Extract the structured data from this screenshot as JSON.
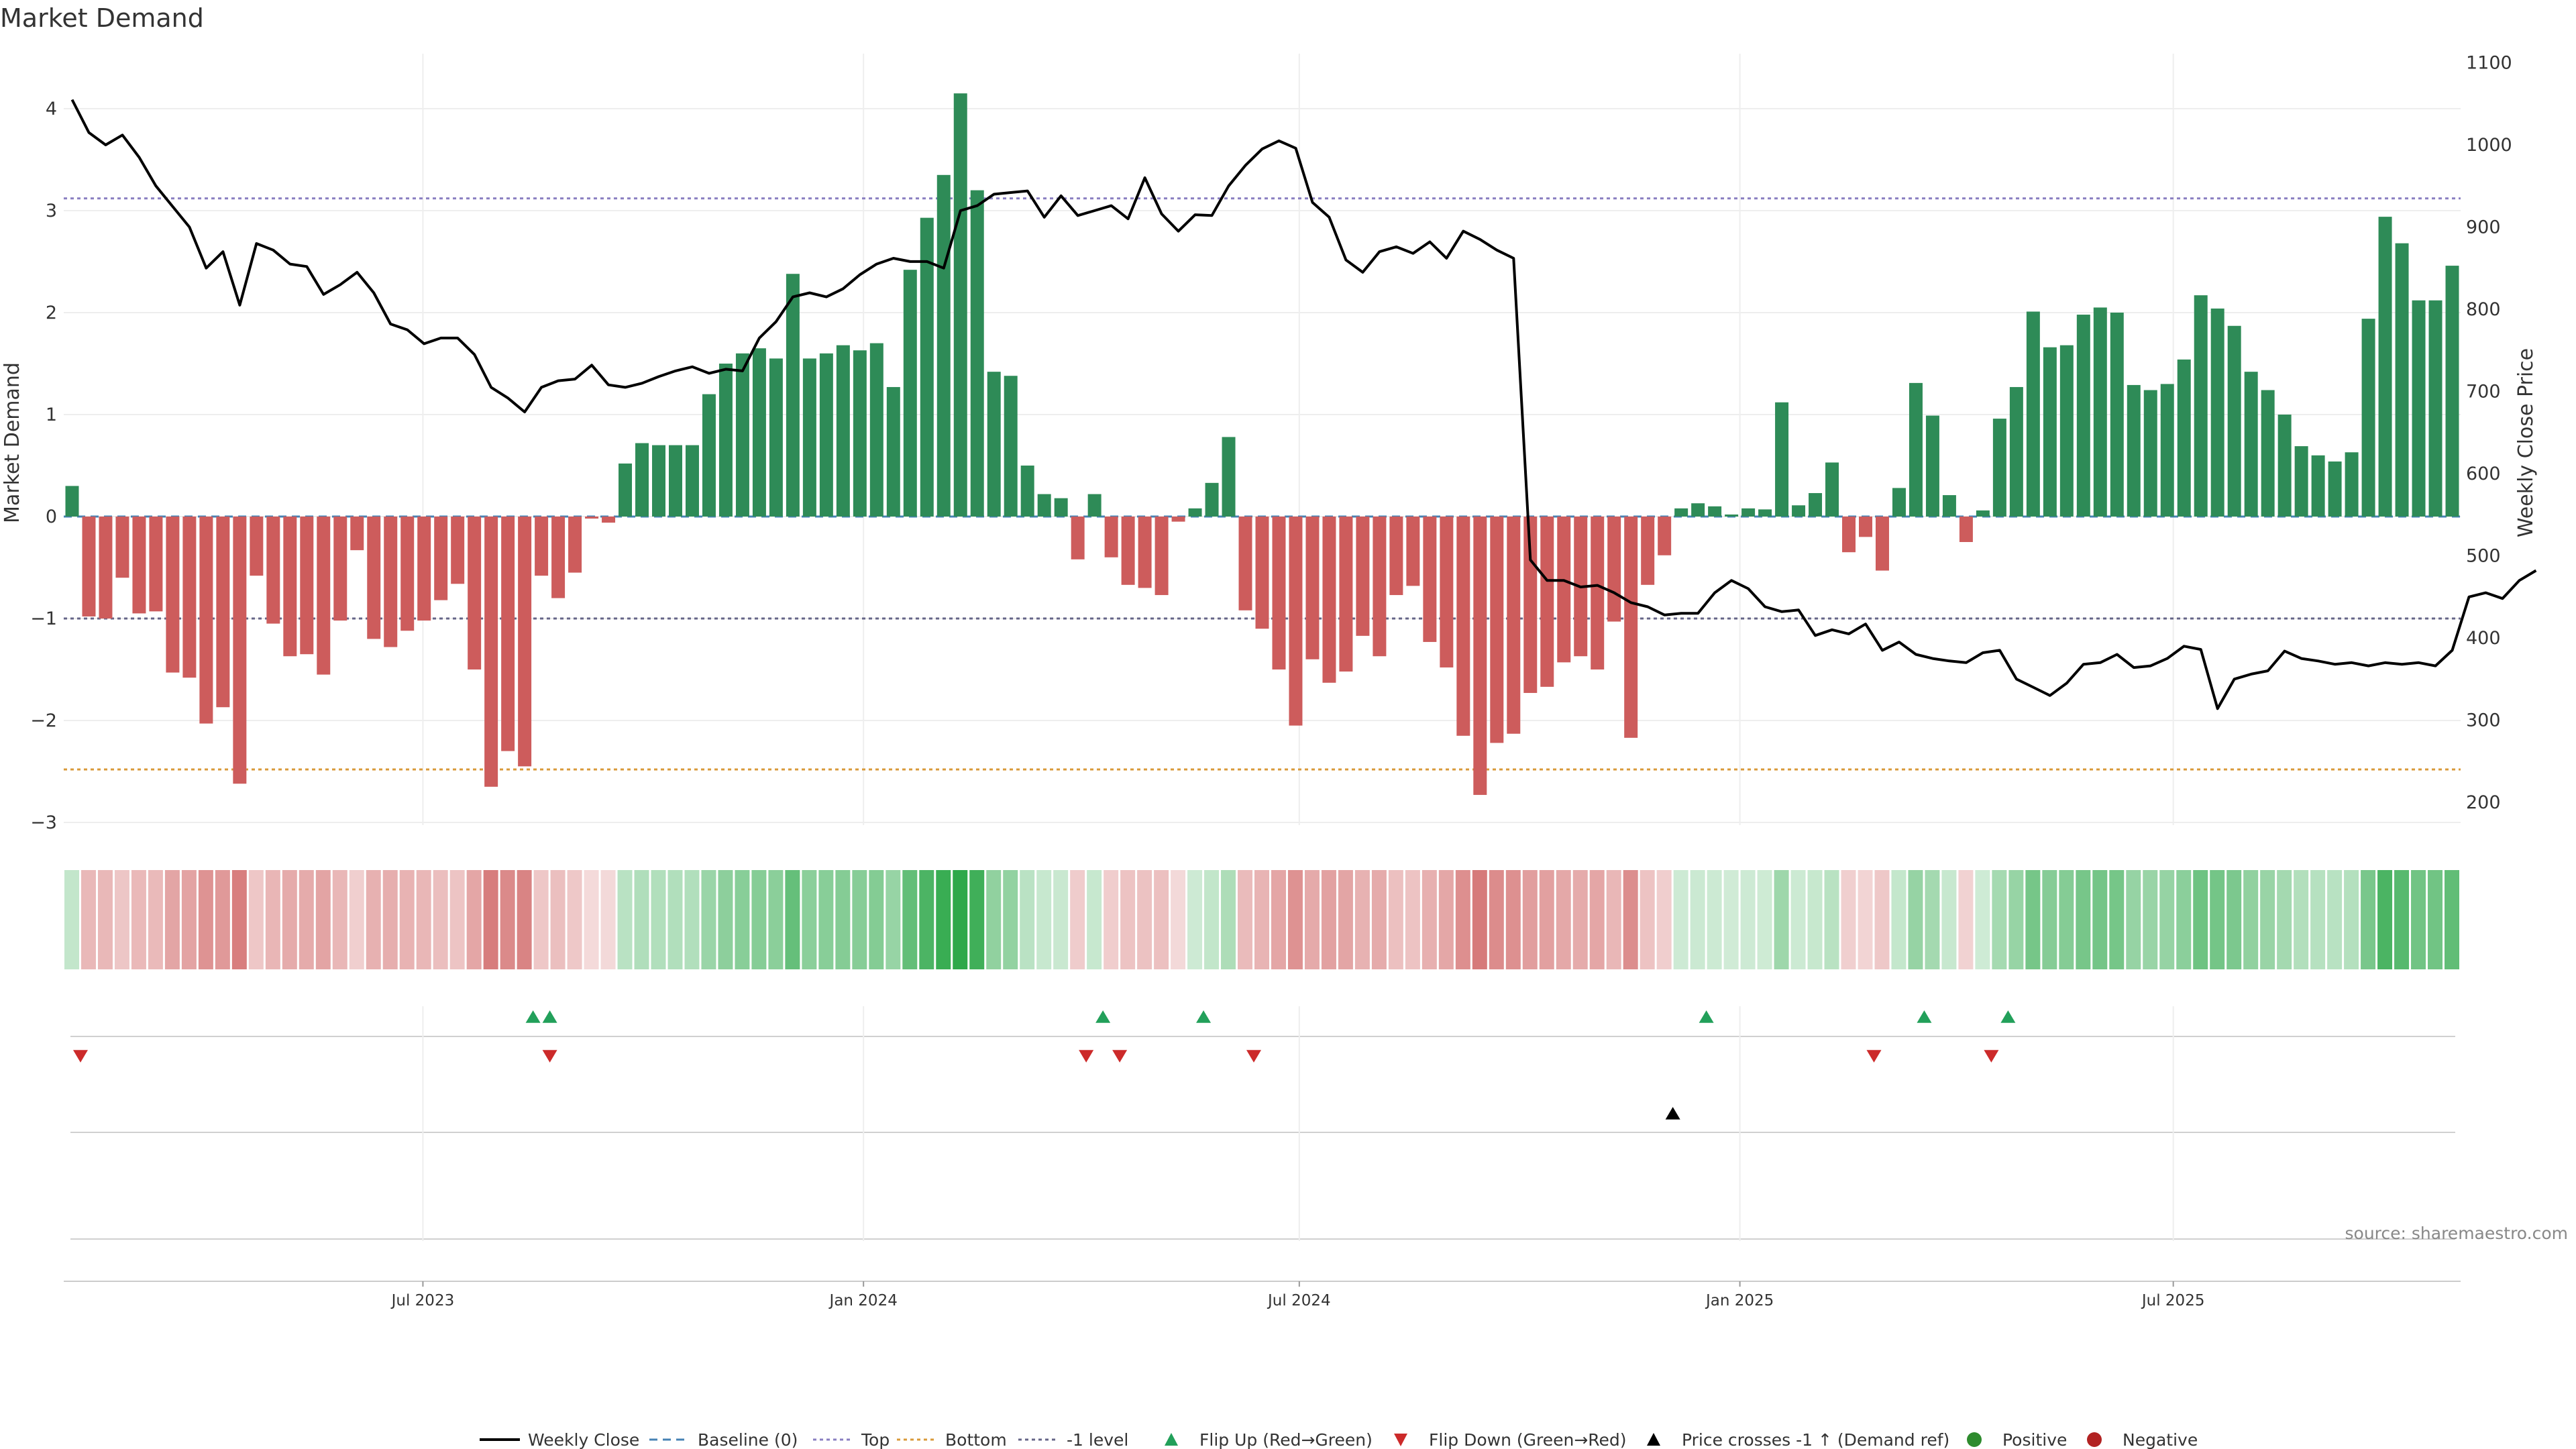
{
  "title": "Market Demand",
  "source": "source: sharemaestro.com",
  "colors": {
    "positive": "#2e8b57",
    "negative": "#cd5c5c",
    "price": "#000000",
    "baseline": "#4682b4",
    "top": "#8a7fc1",
    "bottom": "#d99a3a",
    "minus_one": "#666688",
    "flip_up": "#22a05a",
    "flip_down": "#cc2a2a",
    "cross": "#000000",
    "grid": "#eeeeee"
  },
  "chart_data": {
    "type": "bar",
    "title": "Market Demand",
    "start_date": "2023-02-01",
    "week_step_days": 7,
    "y_left": {
      "label": "Market Demand",
      "ticks": [
        -3,
        -2,
        -1,
        0,
        1,
        2,
        3,
        4
      ],
      "range": [
        -3.2,
        4.3
      ]
    },
    "y_right": {
      "label": "Weekly Close Price",
      "ticks": [
        200,
        300,
        400,
        500,
        600,
        700,
        800,
        900,
        1000,
        1100
      ],
      "range": [
        185,
        1100
      ]
    },
    "x_ticks": [
      {
        "label": "Jul 2023",
        "date": "2023-07-01"
      },
      {
        "label": "Jan 2024",
        "date": "2024-01-01"
      },
      {
        "label": "Jul 2024",
        "date": "2024-07-01"
      },
      {
        "label": "Jan 2025",
        "date": "2025-01-01"
      },
      {
        "label": "Jul 2025",
        "date": "2025-07-01"
      }
    ],
    "reference_lines": {
      "baseline": 0,
      "top": 3.12,
      "bottom": -2.48,
      "minus_one": -1.0
    },
    "demand": [
      0.3,
      -0.98,
      -1.0,
      -0.6,
      -0.95,
      -0.93,
      -1.53,
      -1.58,
      -2.03,
      -1.87,
      -2.62,
      -0.58,
      -1.05,
      -1.37,
      -1.35,
      -1.55,
      -1.02,
      -0.33,
      -1.2,
      -1.28,
      -1.12,
      -1.02,
      -0.82,
      -0.66,
      -1.5,
      -2.65,
      -2.3,
      -2.45,
      -0.58,
      -0.8,
      -0.55,
      -0.02,
      -0.06,
      0.52,
      0.72,
      0.7,
      0.7,
      0.7,
      1.2,
      1.5,
      1.6,
      1.65,
      1.55,
      2.38,
      1.55,
      1.6,
      1.68,
      1.63,
      1.7,
      1.27,
      2.42,
      2.93,
      3.35,
      4.15,
      3.2,
      1.42,
      1.38,
      0.5,
      0.22,
      0.18,
      -0.42,
      0.22,
      -0.4,
      -0.67,
      -0.7,
      -0.77,
      -0.05,
      0.08,
      0.33,
      0.78,
      -0.92,
      -1.1,
      -1.5,
      -2.05,
      -1.4,
      -1.63,
      -1.52,
      -1.17,
      -1.37,
      -0.77,
      -0.68,
      -1.23,
      -1.48,
      -2.15,
      -2.73,
      -2.22,
      -2.13,
      -1.73,
      -1.67,
      -1.43,
      -1.37,
      -1.5,
      -1.03,
      -2.17,
      -0.67,
      -0.38,
      0.08,
      0.13,
      0.1,
      0.02,
      0.08,
      0.07,
      1.12,
      0.11,
      0.23,
      0.53,
      -0.35,
      -0.2,
      -0.53,
      0.28,
      1.31,
      0.99,
      0.21,
      -0.25,
      0.06,
      0.96,
      1.27,
      2.01,
      1.66,
      1.68,
      1.98,
      2.05,
      2.0,
      1.29,
      1.24,
      1.3,
      1.54,
      2.17,
      2.04,
      1.87,
      1.42,
      1.24,
      1.0,
      0.69,
      0.6,
      0.54,
      0.63,
      1.94,
      2.94,
      2.68,
      2.12,
      2.12,
      2.46
    ],
    "price": [
      1055,
      1015,
      1000,
      1012,
      985,
      950,
      925,
      900,
      850,
      870,
      805,
      880,
      872,
      855,
      852,
      818,
      830,
      845,
      820,
      782,
      775,
      758,
      765,
      765,
      745,
      705,
      692,
      675,
      705,
      713,
      715,
      732,
      708,
      705,
      710,
      718,
      725,
      730,
      722,
      727,
      725,
      765,
      785,
      815,
      820,
      815,
      825,
      842,
      855,
      862,
      858,
      858,
      850,
      920,
      926,
      940,
      942,
      944,
      912,
      938,
      914,
      920,
      926,
      910,
      960,
      916,
      895,
      915,
      914,
      950,
      975,
      995,
      1005,
      996,
      930,
      912,
      860,
      845,
      870,
      876,
      868,
      882,
      862,
      895,
      885,
      872,
      862,
      495,
      470,
      470,
      462,
      464,
      455,
      443,
      438,
      428,
      430,
      430,
      455,
      470,
      460,
      438,
      432,
      434,
      403,
      410,
      405,
      417,
      385,
      395,
      380,
      375,
      372,
      370,
      382,
      385,
      350,
      340,
      330,
      345,
      368,
      370,
      380,
      364,
      366,
      375,
      390,
      386,
      314,
      350,
      356,
      360,
      384,
      375,
      372,
      368,
      370,
      366,
      370,
      368,
      370,
      366,
      385,
      450,
      455,
      448,
      470,
      482
    ]
  },
  "status_strip": {
    "note": "demand intensity colored by sign and magnitude"
  },
  "signals": {
    "flip_up": [
      "2023-08-16",
      "2023-08-23",
      "2024-04-10",
      "2024-05-22",
      "2024-12-18",
      "2025-03-19",
      "2025-04-23"
    ],
    "flip_down": [
      "2023-02-08",
      "2023-08-23",
      "2024-04-03",
      "2024-04-17",
      "2024-06-12",
      "2025-02-26",
      "2025-04-16"
    ],
    "price_cross": [
      "2024-12-04"
    ]
  },
  "legend": [
    {
      "key": "weekly_close",
      "label": "Weekly Close",
      "style": "line"
    },
    {
      "key": "baseline",
      "label": "Baseline (0)",
      "style": "dash"
    },
    {
      "key": "top",
      "label": "Top",
      "style": "dot"
    },
    {
      "key": "bottom",
      "label": "Bottom",
      "style": "dot"
    },
    {
      "key": "minus_one",
      "label": "-1 level",
      "style": "dot"
    },
    {
      "key": "flip_up",
      "label": "Flip Up (Red→Green)",
      "style": "tri-up"
    },
    {
      "key": "flip_down",
      "label": "Flip Down (Green→Red)",
      "style": "tri-down"
    },
    {
      "key": "cross",
      "label": "Price crosses -1 ↑ (Demand ref)",
      "style": "tri-up-black"
    },
    {
      "key": "positive",
      "label": "Positive",
      "style": "circle"
    },
    {
      "key": "negative",
      "label": "Negative",
      "style": "circle"
    }
  ]
}
